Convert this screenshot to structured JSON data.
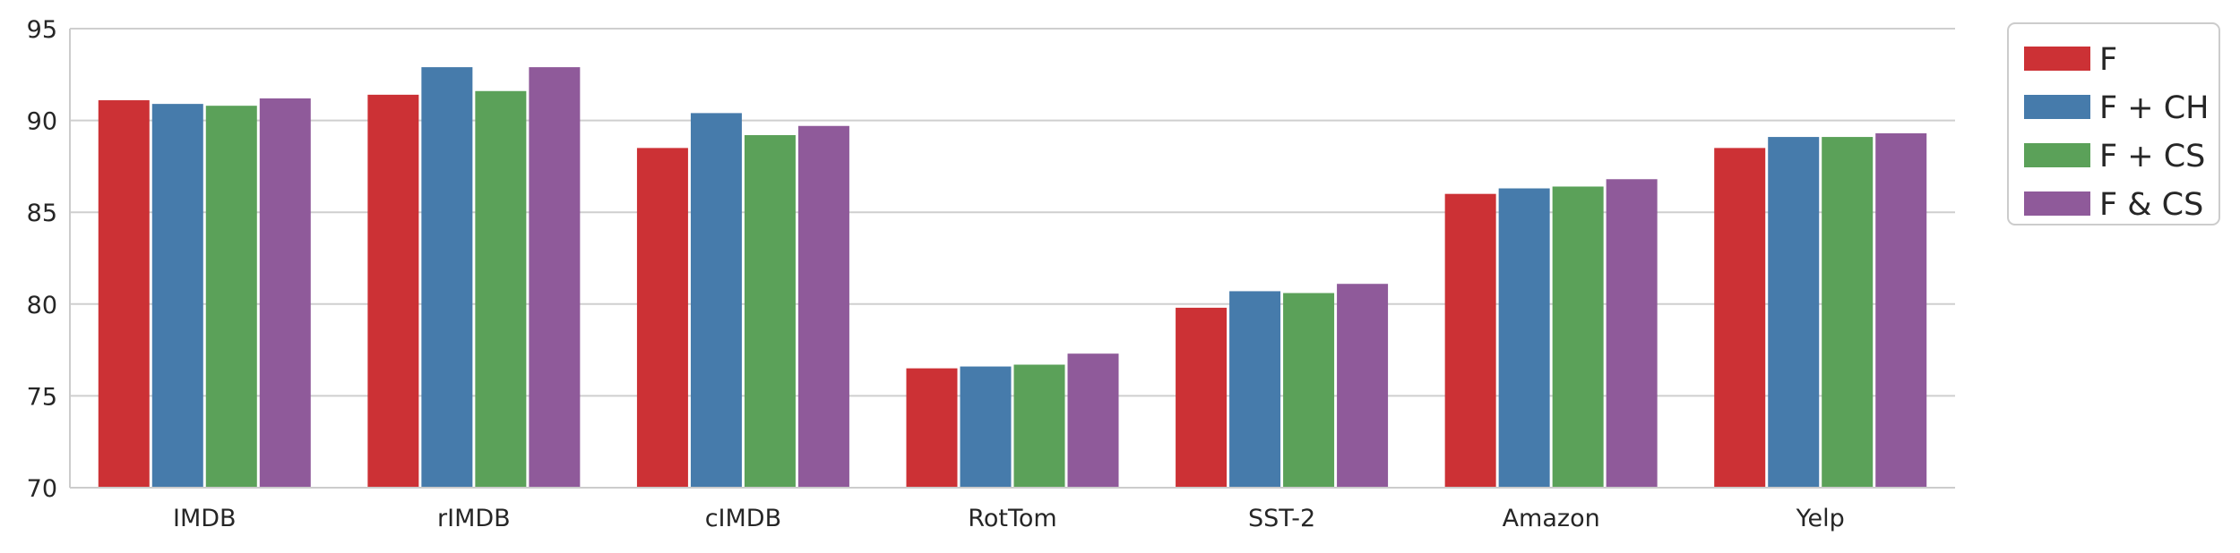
{
  "chart_data": {
    "type": "bar",
    "categories": [
      "IMDB",
      "rIMDB",
      "cIMDB",
      "RotTom",
      "SST-2",
      "Amazon",
      "Yelp"
    ],
    "series": [
      {
        "name": "F",
        "color": "#cc3135",
        "values": [
          91.1,
          91.4,
          88.5,
          76.5,
          79.8,
          86.0,
          88.5
        ]
      },
      {
        "name": "F + CH",
        "color": "#467bab",
        "values": [
          90.9,
          92.9,
          90.4,
          76.6,
          80.7,
          86.3,
          89.1
        ]
      },
      {
        "name": "F + CS",
        "color": "#5ba159",
        "values": [
          90.8,
          91.6,
          89.2,
          76.7,
          80.6,
          86.4,
          89.1
        ]
      },
      {
        "name": "F & CS",
        "color": "#8f5a9a",
        "values": [
          91.2,
          92.9,
          89.7,
          77.3,
          81.1,
          86.8,
          89.3
        ]
      }
    ],
    "yticks": [
      70,
      75,
      80,
      85,
      90,
      95
    ],
    "ylim": [
      70,
      95
    ],
    "title": "",
    "xlabel": "",
    "ylabel": "",
    "grid": "horizontal",
    "legend_position": "outside-top-right"
  }
}
